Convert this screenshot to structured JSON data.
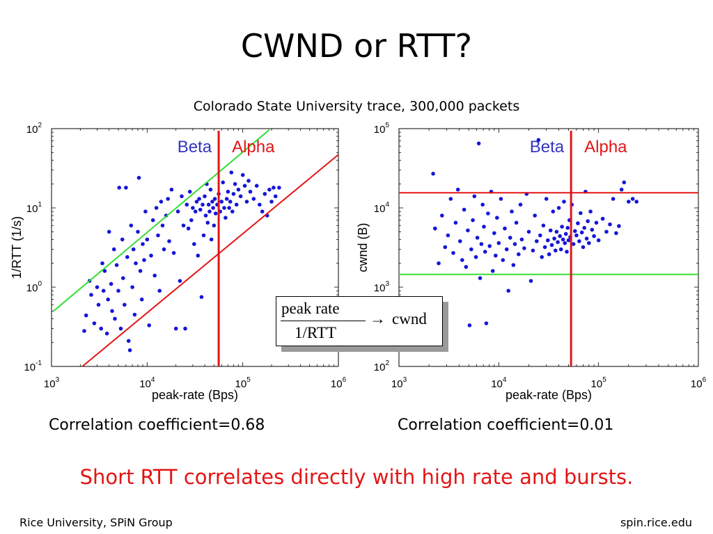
{
  "slide": {
    "title": "CWND or RTT?",
    "subtitle": "Colorado State University trace, 300,000 packets",
    "correlation_left": "Correlation coefficient=0.68",
    "correlation_right": "Correlation coefficient=0.01",
    "conclusion": "Short RTT correlates directly with high rate and bursts.",
    "footer_left": "Rice University, SPiN Group",
    "footer_right": "spin.rice.edu",
    "colors": {
      "conclusion": "#e31515",
      "points": "#1515d9",
      "red_line": "#e31515",
      "green_line": "#33dd33",
      "beta_label": "#3535c0",
      "alpha_label": "#e31515"
    }
  },
  "formula": {
    "numerator": "peak rate",
    "denominator": "1/RTT",
    "arrow": "→",
    "result": "cwnd"
  },
  "chart_data": [
    {
      "type": "scatter",
      "xlabel": "peak-rate (Bps)",
      "ylabel": "1/RTT (1/s)",
      "xscale": "log",
      "yscale": "log",
      "xlim": [
        1000,
        1000000
      ],
      "ylim": [
        0.1,
        100
      ],
      "x_ticks": [
        {
          "base": "10",
          "exp": "3"
        },
        {
          "base": "10",
          "exp": "4"
        },
        {
          "base": "10",
          "exp": "5"
        },
        {
          "base": "10",
          "exp": "6"
        }
      ],
      "y_ticks": [
        {
          "base": "10",
          "exp": "-1"
        },
        {
          "base": "10",
          "exp": "0"
        },
        {
          "base": "10",
          "exp": "1"
        },
        {
          "base": "10",
          "exp": "2"
        }
      ],
      "region_labels": {
        "beta": "Beta",
        "alpha": "Alpha"
      },
      "vertical_line_x": 56000,
      "lines": [
        {
          "color": "red",
          "from": [
            2100,
            0.1
          ],
          "to": [
            1000000,
            47
          ]
        },
        {
          "color": "green",
          "from": [
            1050,
            0.5
          ],
          "to": [
            190000,
            97
          ]
        }
      ],
      "points": [
        [
          2200,
          0.28
        ],
        [
          2300,
          0.44
        ],
        [
          2500,
          1.2
        ],
        [
          2600,
          0.8
        ],
        [
          2800,
          0.35
        ],
        [
          3000,
          1.0
        ],
        [
          3100,
          0.6
        ],
        [
          3300,
          0.3
        ],
        [
          3400,
          2.0
        ],
        [
          3500,
          0.9
        ],
        [
          3600,
          1.6
        ],
        [
          3800,
          0.26
        ],
        [
          3900,
          0.7
        ],
        [
          4000,
          5.0
        ],
        [
          4200,
          1.1
        ],
        [
          4300,
          0.5
        ],
        [
          4500,
          3.0
        ],
        [
          4600,
          0.4
        ],
        [
          4800,
          1.9
        ],
        [
          5000,
          0.9
        ],
        [
          5100,
          18
        ],
        [
          5300,
          0.3
        ],
        [
          5500,
          4.0
        ],
        [
          5600,
          1.3
        ],
        [
          5800,
          0.6
        ],
        [
          6000,
          18
        ],
        [
          6200,
          2.4
        ],
        [
          6400,
          0.21
        ],
        [
          6600,
          0.16
        ],
        [
          6800,
          6.0
        ],
        [
          7000,
          1.0
        ],
        [
          7200,
          3.0
        ],
        [
          7400,
          0.45
        ],
        [
          7600,
          2.0
        ],
        [
          8000,
          5.0
        ],
        [
          8200,
          24
        ],
        [
          8500,
          1.6
        ],
        [
          8800,
          0.7
        ],
        [
          9000,
          3.5
        ],
        [
          9300,
          2.2
        ],
        [
          9600,
          9.0
        ],
        [
          10000,
          4.0
        ],
        [
          10500,
          0.33
        ],
        [
          11000,
          2.5
        ],
        [
          11500,
          7.0
        ],
        [
          12000,
          1.4
        ],
        [
          12500,
          10
        ],
        [
          13000,
          4.5
        ],
        [
          13500,
          0.9
        ],
        [
          14000,
          12
        ],
        [
          14500,
          6.0
        ],
        [
          15000,
          3.0
        ],
        [
          15800,
          8.0
        ],
        [
          16500,
          13
        ],
        [
          17000,
          3.8
        ],
        [
          18000,
          17
        ],
        [
          19000,
          2.7
        ],
        [
          20000,
          0.3
        ],
        [
          21000,
          9.0
        ],
        [
          22000,
          1.2
        ],
        [
          23000,
          14
        ],
        [
          24000,
          6.0
        ],
        [
          25000,
          0.3
        ],
        [
          26000,
          11
        ],
        [
          27000,
          5.5
        ],
        [
          28000,
          16
        ],
        [
          29000,
          7.0
        ],
        [
          30000,
          10
        ],
        [
          31000,
          3.5
        ],
        [
          32000,
          9.0
        ],
        [
          33000,
          12
        ],
        [
          34000,
          2.5
        ],
        [
          35000,
          13
        ],
        [
          36000,
          9.5
        ],
        [
          37000,
          0.75
        ],
        [
          38000,
          11
        ],
        [
          39000,
          4.5
        ],
        [
          40000,
          14
        ],
        [
          41000,
          8.0
        ],
        [
          42000,
          20
        ],
        [
          43000,
          6.5
        ],
        [
          44000,
          11
        ],
        [
          45000,
          9.0
        ],
        [
          46000,
          17
        ],
        [
          47000,
          4.0
        ],
        [
          48000,
          12
        ],
        [
          49000,
          10
        ],
        [
          50000,
          6.0
        ],
        [
          51000,
          13
        ],
        [
          52000,
          8.5
        ],
        [
          54000,
          11
        ],
        [
          56000,
          15
        ],
        [
          58000,
          9.0
        ],
        [
          60000,
          12
        ],
        [
          62000,
          21
        ],
        [
          64000,
          10
        ],
        [
          66000,
          7.5
        ],
        [
          68000,
          13
        ],
        [
          70000,
          16
        ],
        [
          72000,
          10
        ],
        [
          74000,
          12
        ],
        [
          76000,
          28
        ],
        [
          78000,
          9.0
        ],
        [
          80000,
          15
        ],
        [
          83000,
          20
        ],
        [
          86000,
          11
        ],
        [
          90000,
          17
        ],
        [
          95000,
          14
        ],
        [
          100000,
          26
        ],
        [
          105000,
          19
        ],
        [
          110000,
          12
        ],
        [
          115000,
          22
        ],
        [
          120000,
          16
        ],
        [
          130000,
          13
        ],
        [
          140000,
          19
        ],
        [
          150000,
          11
        ],
        [
          160000,
          9.0
        ],
        [
          170000,
          15
        ],
        [
          180000,
          8.0
        ],
        [
          190000,
          17
        ],
        [
          200000,
          12
        ],
        [
          210000,
          18
        ],
        [
          220000,
          14
        ],
        [
          240000,
          18
        ]
      ]
    },
    {
      "type": "scatter",
      "xlabel": "peak-rate (Bps)",
      "ylabel": "cwnd (B)",
      "xscale": "log",
      "yscale": "log",
      "xlim": [
        1000,
        1000000
      ],
      "ylim": [
        100,
        100000
      ],
      "x_ticks": [
        {
          "base": "10",
          "exp": "3"
        },
        {
          "base": "10",
          "exp": "4"
        },
        {
          "base": "10",
          "exp": "5"
        },
        {
          "base": "10",
          "exp": "6"
        }
      ],
      "y_ticks": [
        {
          "base": "10",
          "exp": "2"
        },
        {
          "base": "10",
          "exp": "3"
        },
        {
          "base": "10",
          "exp": "4"
        },
        {
          "base": "10",
          "exp": "5"
        }
      ],
      "region_labels": {
        "beta": "Beta",
        "alpha": "Alpha"
      },
      "vertical_line_x": 53000,
      "lines": [
        {
          "color": "red",
          "from": [
            1000,
            15500
          ],
          "to": [
            1000000,
            15500
          ]
        },
        {
          "color": "green",
          "from": [
            1000,
            1450
          ],
          "to": [
            1000000,
            1450
          ]
        }
      ],
      "points": [
        [
          2200,
          27000
        ],
        [
          2300,
          5500
        ],
        [
          2500,
          2000
        ],
        [
          2700,
          8000
        ],
        [
          2900,
          3200
        ],
        [
          3100,
          4500
        ],
        [
          3300,
          13000
        ],
        [
          3500,
          2700
        ],
        [
          3700,
          6500
        ],
        [
          3900,
          17000
        ],
        [
          4100,
          3800
        ],
        [
          4300,
          2200
        ],
        [
          4500,
          9500
        ],
        [
          4700,
          1800
        ],
        [
          4900,
          5200
        ],
        [
          5100,
          330
        ],
        [
          5300,
          3000
        ],
        [
          5500,
          7000
        ],
        [
          5700,
          14000
        ],
        [
          5900,
          2400
        ],
        [
          6100,
          4200
        ],
        [
          6300,
          65000
        ],
        [
          6500,
          1300
        ],
        [
          6700,
          3500
        ],
        [
          6900,
          11000
        ],
        [
          7100,
          5800
        ],
        [
          7300,
          2800
        ],
        [
          7500,
          350
        ],
        [
          7800,
          8500
        ],
        [
          8100,
          3300
        ],
        [
          8400,
          16000
        ],
        [
          8700,
          1600
        ],
        [
          9000,
          4800
        ],
        [
          9300,
          2500
        ],
        [
          9600,
          7500
        ],
        [
          10000,
          3600
        ],
        [
          10500,
          13000
        ],
        [
          11000,
          2200
        ],
        [
          11500,
          5500
        ],
        [
          12000,
          3000
        ],
        [
          12500,
          900
        ],
        [
          13000,
          4200
        ],
        [
          13500,
          9000
        ],
        [
          14000,
          1900
        ],
        [
          14500,
          3500
        ],
        [
          15000,
          6500
        ],
        [
          15800,
          2600
        ],
        [
          16500,
          11000
        ],
        [
          17000,
          4000
        ],
        [
          18000,
          3100
        ],
        [
          19000,
          15000
        ],
        [
          20000,
          5000
        ],
        [
          21000,
          1200
        ],
        [
          22000,
          2900
        ],
        [
          23000,
          8000
        ],
        [
          24000,
          3800
        ],
        [
          25000,
          72000
        ],
        [
          26000,
          4500
        ],
        [
          27000,
          2400
        ],
        [
          28000,
          6000
        ],
        [
          29000,
          3200
        ],
        [
          30000,
          13000
        ],
        [
          31000,
          3900
        ],
        [
          32000,
          2600
        ],
        [
          33000,
          5200
        ],
        [
          34000,
          3400
        ],
        [
          35000,
          9000
        ],
        [
          36000,
          4100
        ],
        [
          37000,
          2900
        ],
        [
          38000,
          5000
        ],
        [
          39000,
          3700
        ],
        [
          40000,
          10000
        ],
        [
          41000,
          4400
        ],
        [
          42000,
          3000
        ],
        [
          43000,
          5800
        ],
        [
          44000,
          4000
        ],
        [
          45000,
          12000
        ],
        [
          46000,
          3600
        ],
        [
          47000,
          4700
        ],
        [
          48000,
          2800
        ],
        [
          49000,
          5600
        ],
        [
          50000,
          3900
        ],
        [
          51000,
          7000
        ],
        [
          52000,
          4300
        ],
        [
          54000,
          11000
        ],
        [
          56000,
          3500
        ],
        [
          58000,
          5100
        ],
        [
          60000,
          4500
        ],
        [
          62000,
          6400
        ],
        [
          64000,
          3800
        ],
        [
          66000,
          8600
        ],
        [
          68000,
          4900
        ],
        [
          70000,
          3200
        ],
        [
          72000,
          5600
        ],
        [
          74000,
          16000
        ],
        [
          76000,
          4100
        ],
        [
          78000,
          6800
        ],
        [
          80000,
          3600
        ],
        [
          83000,
          9000
        ],
        [
          86000,
          5300
        ],
        [
          90000,
          4400
        ],
        [
          95000,
          6500
        ],
        [
          100000,
          3900
        ],
        [
          110000,
          7300
        ],
        [
          120000,
          5000
        ],
        [
          130000,
          6200
        ],
        [
          140000,
          13000
        ],
        [
          150000,
          4800
        ],
        [
          160000,
          5900
        ],
        [
          170000,
          17000
        ],
        [
          180000,
          21000
        ],
        [
          200000,
          12000
        ],
        [
          220000,
          13000
        ],
        [
          240000,
          12000
        ]
      ]
    }
  ]
}
